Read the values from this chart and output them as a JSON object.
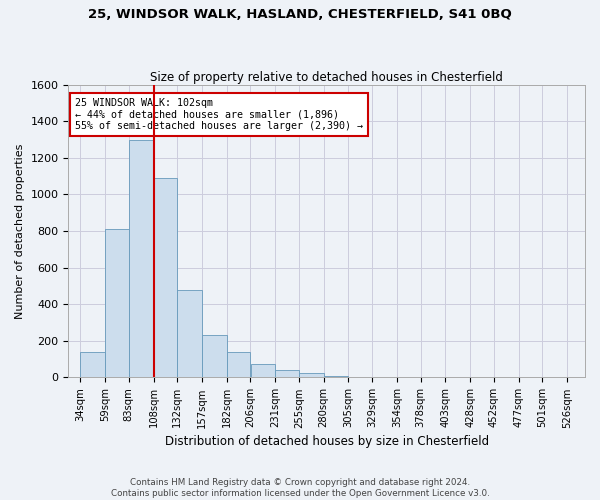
{
  "title": "25, WINDSOR WALK, HASLAND, CHESTERFIELD, S41 0BQ",
  "subtitle": "Size of property relative to detached houses in Chesterfield",
  "xlabel": "Distribution of detached houses by size in Chesterfield",
  "ylabel": "Number of detached properties",
  "footer_line1": "Contains HM Land Registry data © Crown copyright and database right 2024.",
  "footer_line2": "Contains public sector information licensed under the Open Government Licence v3.0.",
  "categories": [
    "34sqm",
    "59sqm",
    "83sqm",
    "108sqm",
    "132sqm",
    "157sqm",
    "182sqm",
    "206sqm",
    "231sqm",
    "255sqm",
    "280sqm",
    "305sqm",
    "329sqm",
    "354sqm",
    "378sqm",
    "403sqm",
    "428sqm",
    "452sqm",
    "477sqm",
    "501sqm",
    "526sqm"
  ],
  "values": [
    140,
    810,
    1300,
    1090,
    480,
    230,
    140,
    75,
    40,
    25,
    10,
    5,
    3,
    2,
    1,
    1,
    0,
    0,
    0,
    0,
    0
  ],
  "bar_color": "#ccdded",
  "bar_edge_color": "#6699bb",
  "property_line_label": "25 WINDSOR WALK: 102sqm",
  "annotation_line1": "← 44% of detached houses are smaller (1,896)",
  "annotation_line2": "55% of semi-detached houses are larger (2,390) →",
  "red_line_color": "#cc0000",
  "box_color": "#cc0000",
  "ylim": [
    0,
    1600
  ],
  "yticks": [
    0,
    200,
    400,
    600,
    800,
    1000,
    1200,
    1400,
    1600
  ],
  "grid_color": "#ccccdd",
  "bg_color": "#eef2f7",
  "edges": [
    34,
    59,
    83,
    108,
    132,
    157,
    182,
    206,
    231,
    255,
    280,
    305,
    329,
    354,
    378,
    403,
    428,
    452,
    477,
    501,
    526
  ]
}
